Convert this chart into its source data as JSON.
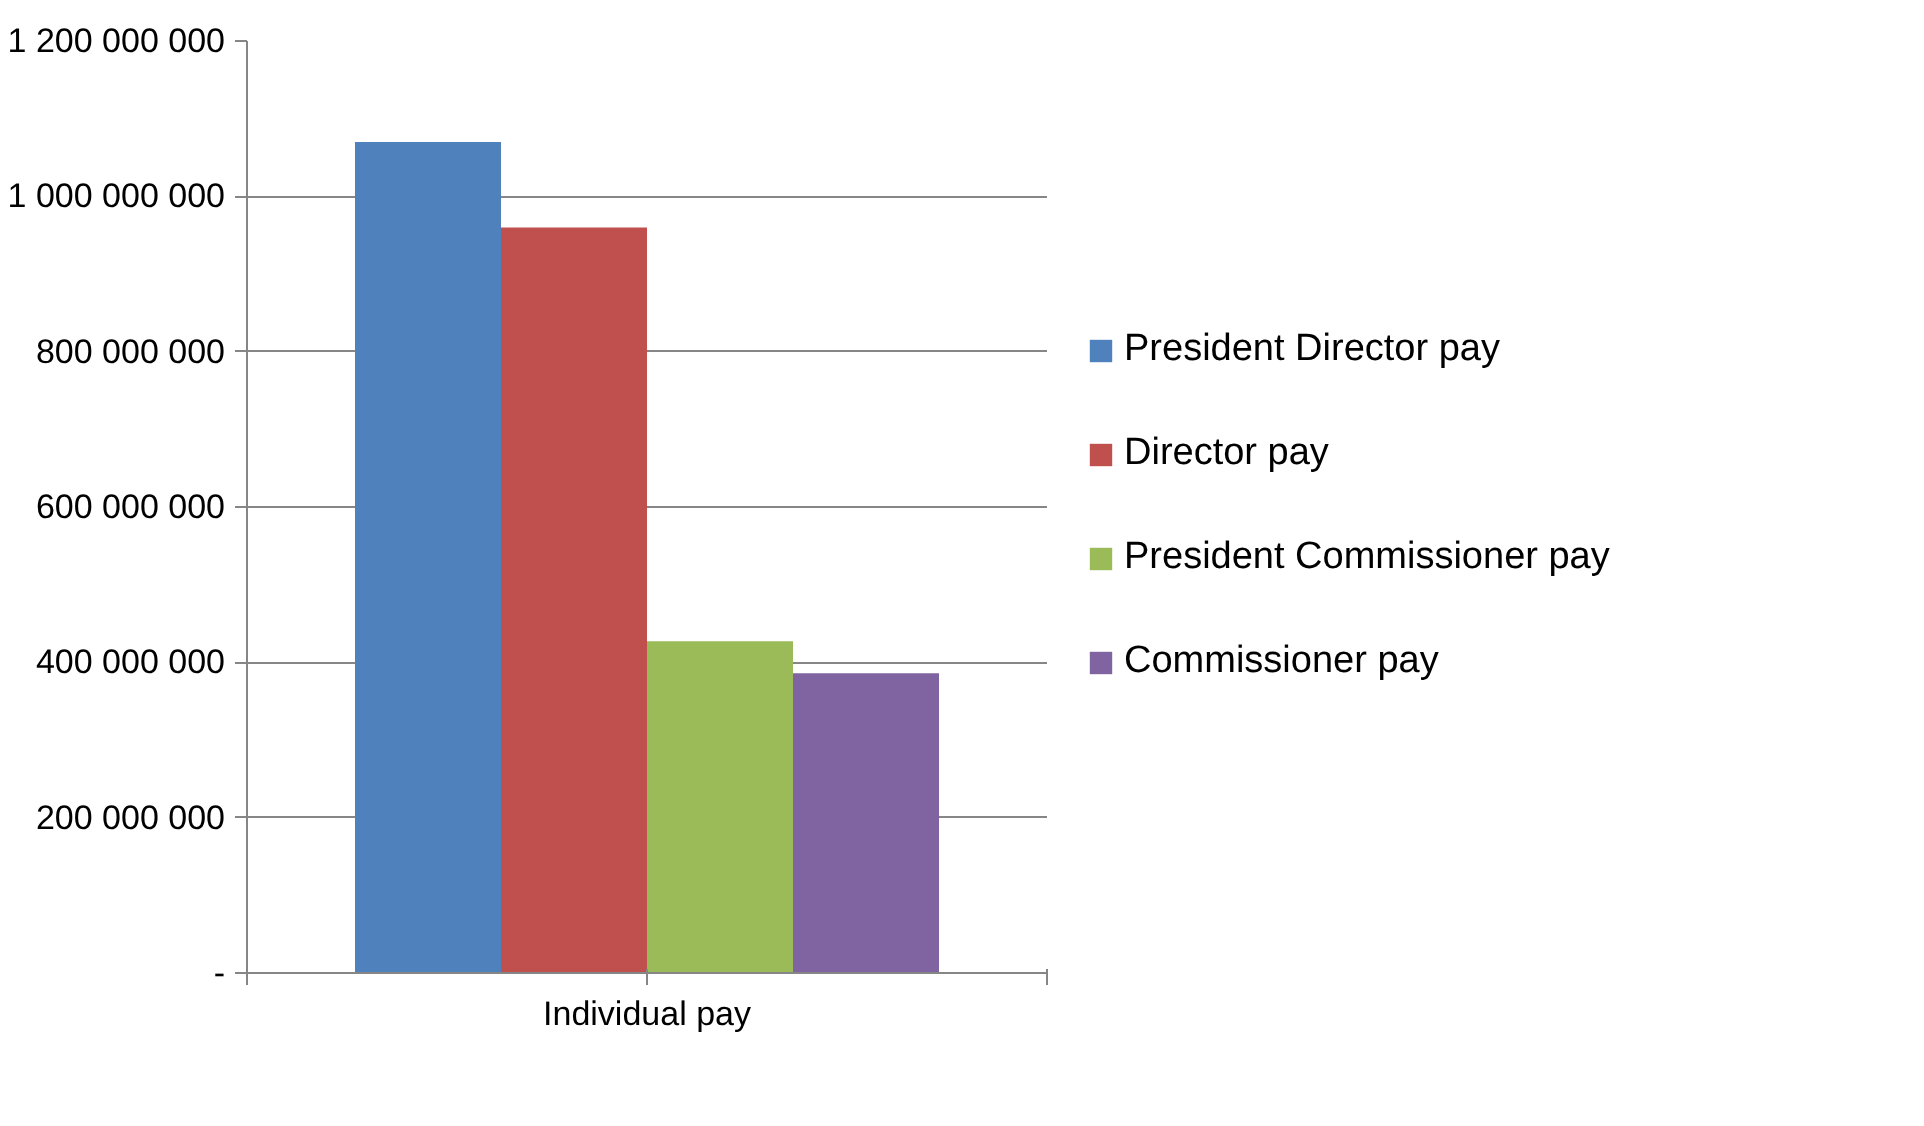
{
  "chart_data": {
    "type": "bar",
    "categories": [
      "Individual pay"
    ],
    "series": [
      {
        "name": "President Director pay",
        "color": "#4f81bd",
        "values": [
          1070000000
        ]
      },
      {
        "name": "Director pay",
        "color": "#c0504d",
        "values": [
          960000000
        ]
      },
      {
        "name": "President Commissioner pay",
        "color": "#9bbb59",
        "values": [
          427000000
        ]
      },
      {
        "name": "Commissioner pay",
        "color": "#8064a2",
        "values": [
          386000000
        ]
      }
    ],
    "ylim": [
      0,
      1200000000
    ],
    "yticks": [
      {
        "value": 0,
        "label": "-"
      },
      {
        "value": 200000000,
        "label": "200 000 000"
      },
      {
        "value": 400000000,
        "label": "400 000 000"
      },
      {
        "value": 600000000,
        "label": "600 000 000"
      },
      {
        "value": 800000000,
        "label": "800 000 000"
      },
      {
        "value": 1000000000,
        "label": "1 000 000 000"
      },
      {
        "value": 1200000000,
        "label": "1 200 000 000"
      }
    ],
    "grid": "y",
    "legend": "right"
  }
}
